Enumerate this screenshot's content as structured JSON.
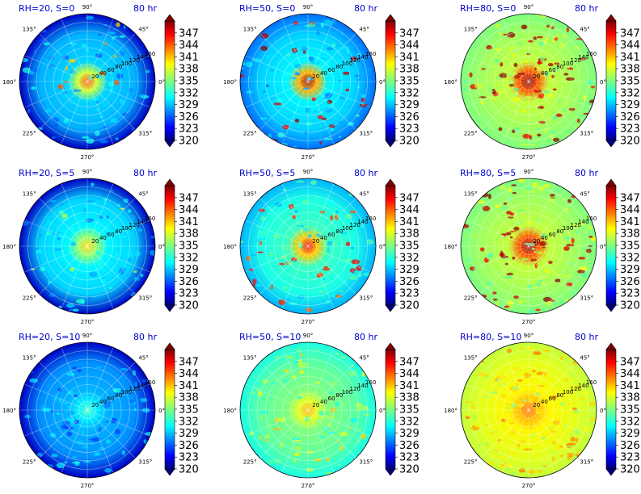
{
  "chart_data": {
    "type": "heatmap",
    "projection": "polar",
    "time_label": "80 hr",
    "angular_ticks": [
      "90°",
      "45°",
      "0°",
      "315°",
      "270°",
      "225°",
      "180°",
      "135°"
    ],
    "radial_ticks": [
      20,
      40,
      60,
      80,
      100,
      120,
      140,
      160
    ],
    "radial_range": [
      0,
      160
    ],
    "colormap": "jet",
    "colorbar_range": [
      320,
      350
    ],
    "colorbar_ticks": [
      347,
      344,
      341,
      338,
      335,
      332,
      329,
      326,
      323,
      320
    ],
    "grid": true,
    "panels": [
      {
        "title": "RH=20, S=0",
        "rh": 20,
        "shear": 0,
        "center_value": 344,
        "ambient_value": 329,
        "edge_value": 322
      },
      {
        "title": "RH=50, S=0",
        "rh": 50,
        "shear": 0,
        "center_value": 350,
        "ambient_value": 330,
        "edge_value": 327
      },
      {
        "title": "RH=80, S=0",
        "rh": 80,
        "shear": 0,
        "center_value": 350,
        "ambient_value": 336,
        "edge_value": 335
      },
      {
        "title": "RH=20, S=5",
        "rh": 20,
        "shear": 5,
        "center_value": 340,
        "ambient_value": 330,
        "edge_value": 322
      },
      {
        "title": "RH=50, S=5",
        "rh": 50,
        "shear": 5,
        "center_value": 347,
        "ambient_value": 332,
        "edge_value": 329
      },
      {
        "title": "RH=80, S=5",
        "rh": 80,
        "shear": 5,
        "center_value": 350,
        "ambient_value": 336,
        "edge_value": 335
      },
      {
        "title": "RH=20, S=10",
        "rh": 20,
        "shear": 10,
        "center_value": 333,
        "ambient_value": 328,
        "edge_value": 322
      },
      {
        "title": "RH=50, S=10",
        "rh": 50,
        "shear": 10,
        "center_value": 341,
        "ambient_value": 334,
        "edge_value": 332
      },
      {
        "title": "RH=80, S=10",
        "rh": 80,
        "shear": 10,
        "center_value": 343,
        "ambient_value": 338,
        "edge_value": 337
      }
    ]
  }
}
